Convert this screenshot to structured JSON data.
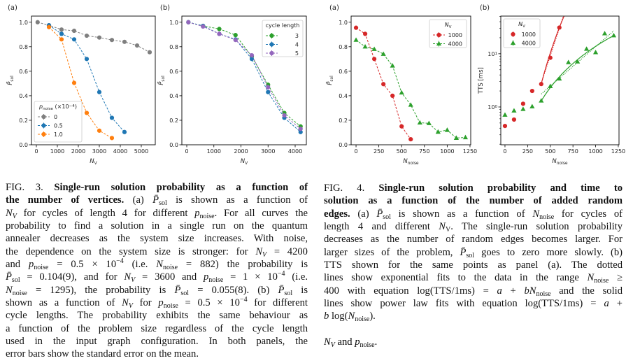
{
  "colors": {
    "gray": "#7f7f7f",
    "blue": "#1f77b4",
    "orange": "#ff7f0e",
    "green": "#2ca02c",
    "purple": "#9467bd",
    "red": "#d62728"
  },
  "chart_data": [
    {
      "panel": "(a)",
      "type": "line",
      "xlabel": [
        [
          "N",
          "i"
        ],
        [
          "V",
          "sub"
        ]
      ],
      "ylabel": [
        [
          "P̄",
          "i"
        ],
        [
          "sol",
          "sub"
        ]
      ],
      "xlim": [
        -233,
        5667
      ],
      "ylim": [
        0,
        1.05
      ],
      "xticks": [
        0,
        1000,
        2000,
        3000,
        4000,
        5000
      ],
      "yticks": [
        0.0,
        0.2,
        0.4,
        0.6,
        0.8,
        1.0
      ],
      "yscale": "linear",
      "legend": {
        "placement": "lower-left",
        "title": [
          [
            "p",
            "i"
          ],
          [
            "noise",
            "sub"
          ],
          [
            " (×10",
            ""
          ],
          [
            "−4",
            "sup"
          ],
          [
            ")",
            ""
          ]
        ]
      },
      "series": [
        {
          "name": "0",
          "color": "#7f7f7f",
          "marker": "circle",
          "x": [
            60,
            600,
            1200,
            1800,
            2400,
            3000,
            3600,
            4200,
            4800,
            5400
          ],
          "y": [
            1.0,
            0.975,
            0.94,
            0.93,
            0.89,
            0.875,
            0.855,
            0.84,
            0.81,
            0.755
          ]
        },
        {
          "name": "0.5",
          "color": "#1f77b4",
          "marker": "circle",
          "x": [
            600,
            1200,
            1800,
            2400,
            3000,
            3600,
            4200
          ],
          "y": [
            0.975,
            0.905,
            0.86,
            0.7,
            0.43,
            0.22,
            0.104
          ]
        },
        {
          "name": "1.0",
          "color": "#ff7f0e",
          "marker": "circle",
          "x": [
            600,
            1200,
            1800,
            2400,
            3000,
            3600
          ],
          "y": [
            0.96,
            0.86,
            0.505,
            0.26,
            0.115,
            0.055
          ]
        }
      ]
    },
    {
      "panel": "(b)",
      "type": "line",
      "xlabel": [
        [
          "N",
          "i"
        ],
        [
          "V",
          "sub"
        ]
      ],
      "ylabel": [
        [
          "P̄",
          "i"
        ],
        [
          "sol",
          "sub"
        ]
      ],
      "xlim": [
        -181,
        4413
      ],
      "ylim": [
        0,
        1.05
      ],
      "xticks": [
        0,
        1000,
        2000,
        3000,
        4000
      ],
      "yticks": [
        0.0,
        0.2,
        0.4,
        0.6,
        0.8,
        1.0
      ],
      "yscale": "linear",
      "legend": {
        "placement": "upper-right",
        "title": [
          [
            "cycle length",
            ""
          ]
        ]
      },
      "series": [
        {
          "name": "3",
          "color": "#2ca02c",
          "marker": "circle",
          "x": [
            60,
            600,
            1200,
            1800,
            2400,
            3000,
            3600,
            4200
          ],
          "y": [
            1.0,
            0.97,
            0.945,
            0.895,
            0.72,
            0.49,
            0.26,
            0.15
          ]
        },
        {
          "name": "4",
          "color": "#1f77b4",
          "marker": "circle",
          "x": [
            60,
            600,
            1200,
            1800,
            2400,
            3000,
            3600,
            4200
          ],
          "y": [
            1.0,
            0.97,
            0.905,
            0.86,
            0.7,
            0.43,
            0.22,
            0.104
          ]
        },
        {
          "name": "5",
          "color": "#9467bd",
          "marker": "circle",
          "x": [
            60,
            600,
            1200,
            1800,
            2400,
            3000,
            3600,
            4200
          ],
          "y": [
            1.0,
            0.965,
            0.905,
            0.855,
            0.73,
            0.47,
            0.24,
            0.13
          ]
        }
      ]
    },
    {
      "panel": "(a)",
      "type": "line",
      "xlabel": [
        [
          "N",
          "i"
        ],
        [
          "noise",
          "sub"
        ]
      ],
      "ylabel": [
        [
          "P̄",
          "i"
        ],
        [
          "sol",
          "sub"
        ]
      ],
      "xlim": [
        -54,
        1258
      ],
      "ylim": [
        0,
        1.05
      ],
      "xticks": [
        0,
        250,
        500,
        750,
        1000,
        1250
      ],
      "yticks": [
        0.0,
        0.2,
        0.4,
        0.6,
        0.8,
        1.0
      ],
      "yscale": "linear",
      "legend": {
        "placement": "upper-right",
        "title": [
          [
            "N",
            "i"
          ],
          [
            "V",
            "sub"
          ]
        ]
      },
      "series": [
        {
          "name": "1000",
          "color": "#d62728",
          "marker": "circle",
          "x": [
            0,
            100,
            200,
            300,
            400,
            500,
            600
          ],
          "y": [
            0.955,
            0.905,
            0.7,
            0.495,
            0.4,
            0.15,
            0.045
          ]
        },
        {
          "name": "4000",
          "color": "#2ca02c",
          "marker": "triangle",
          "x": [
            0,
            100,
            200,
            300,
            400,
            500,
            600,
            700,
            800,
            900,
            1000,
            1100,
            1200
          ],
          "y": [
            0.855,
            0.8,
            0.78,
            0.74,
            0.645,
            0.425,
            0.325,
            0.18,
            0.175,
            0.105,
            0.12,
            0.055,
            0.06
          ]
        }
      ]
    },
    {
      "panel": "(b)",
      "type": "scatter",
      "xlabel": [
        [
          "N",
          "i"
        ],
        [
          "noise",
          "sub"
        ]
      ],
      "ylabel": [
        [
          "TTS [ms]",
          ""
        ]
      ],
      "xlim": [
        -46,
        1258
      ],
      "ylim": [
        0.195,
        51
      ],
      "xticks": [
        0,
        250,
        500,
        750,
        1000,
        1250
      ],
      "yticks": [
        1,
        10
      ],
      "ytick_labels": [
        [
          "10",
          "0"
        ],
        [
          "10",
          "1"
        ]
      ],
      "yscale": "log",
      "legend": {
        "placement": "upper-left",
        "title": [
          [
            "N",
            "i"
          ],
          [
            "V",
            "sub"
          ]
        ]
      },
      "series": [
        {
          "name": "1000",
          "color": "#d62728",
          "marker": "circle",
          "x": [
            0,
            100,
            200,
            300,
            400,
            500,
            600
          ],
          "y": [
            0.44,
            0.58,
            1.15,
            2.0,
            2.7,
            8.4,
            31
          ]
        },
        {
          "name": "4000",
          "color": "#2ca02c",
          "marker": "triangle",
          "x": [
            0,
            100,
            200,
            300,
            400,
            500,
            600,
            700,
            800,
            900,
            1000,
            1100,
            1200
          ],
          "y": [
            0.71,
            0.85,
            0.91,
            1.02,
            1.31,
            2.45,
            3.4,
            6.9,
            7.1,
            12.3,
            10.6,
            24,
            22
          ]
        }
      ],
      "fits": [
        {
          "kind": "power law",
          "style": "solid",
          "color": "#d62728",
          "x_range": [
            400,
            660
          ],
          "a_b_from_points": [
            [
              400,
              2.7
            ],
            [
              600,
              31
            ]
          ]
        },
        {
          "kind": "exponential",
          "style": "dotted",
          "color": "#d62728",
          "x_range": [
            400,
            660
          ],
          "a_b_from_points": [
            [
              400,
              2.8
            ],
            [
              600,
              30
            ]
          ]
        },
        {
          "kind": "power law",
          "style": "solid",
          "color": "#2ca02c",
          "x_range": [
            400,
            1200
          ],
          "a_b_from_points": [
            [
              400,
              1.3
            ],
            [
              1200,
              22
            ]
          ]
        },
        {
          "kind": "exponential",
          "style": "dotted",
          "color": "#2ca02c",
          "x_range": [
            400,
            1200
          ],
          "a_b_from_points": [
            [
              400,
              1.75
            ],
            [
              1200,
              27
            ]
          ]
        }
      ]
    }
  ],
  "fig3_caption": [
    [
      [
        "FIG. 3. ",
        ""
      ],
      [
        "Single-run solution probability as a function of",
        "b"
      ]
    ],
    [
      [
        "the number of vertices.",
        "b"
      ],
      [
        " (a) ",
        ""
      ],
      [
        "P̄",
        "i"
      ],
      [
        "sol",
        "sub"
      ],
      [
        " is shown as a function of",
        ""
      ]
    ],
    [
      [
        "N",
        "i"
      ],
      [
        "V",
        "subi"
      ],
      [
        " for cycles of length 4 for different ",
        ""
      ],
      [
        "p",
        "i"
      ],
      [
        "noise",
        "sub"
      ],
      [
        ". For all curves the",
        ""
      ]
    ],
    [
      [
        "probability to find a solution in a single run on the quantum",
        ""
      ]
    ],
    [
      [
        "annealer decreases as the system size increases. With noise,",
        ""
      ]
    ],
    [
      [
        "the dependence on the system size is stronger: for ",
        ""
      ],
      [
        "N",
        "i"
      ],
      [
        "V",
        "subi"
      ],
      [
        " = 4200",
        ""
      ]
    ],
    [
      [
        "and ",
        ""
      ],
      [
        "p",
        "i"
      ],
      [
        "noise",
        "sub"
      ],
      [
        " = 0.5 × 10",
        ""
      ],
      [
        "−4",
        "sup"
      ],
      [
        " (i.e. ",
        ""
      ],
      [
        "N",
        "i"
      ],
      [
        "noise",
        "sub"
      ],
      [
        " = 882) the probability is",
        ""
      ]
    ],
    [
      [
        "P̄",
        "i"
      ],
      [
        "sol",
        "sub"
      ],
      [
        " = 0.104(9), and for ",
        ""
      ],
      [
        "N",
        "i"
      ],
      [
        "V",
        "subi"
      ],
      [
        " = 3600 and ",
        ""
      ],
      [
        "p",
        "i"
      ],
      [
        "noise",
        "sub"
      ],
      [
        " = 1 × 10",
        ""
      ],
      [
        "−4",
        "sup"
      ],
      [
        " (i.e.",
        ""
      ]
    ],
    [
      [
        "N",
        "i"
      ],
      [
        "noise",
        "sub"
      ],
      [
        " = 1295), the probability is ",
        ""
      ],
      [
        "P̄",
        "i"
      ],
      [
        "sol",
        "sub"
      ],
      [
        " = 0.055(8). (b) ",
        ""
      ],
      [
        "P̄",
        "i"
      ],
      [
        "sol",
        "sub"
      ],
      [
        " is",
        ""
      ]
    ],
    [
      [
        "shown as a function of ",
        ""
      ],
      [
        "N",
        "i"
      ],
      [
        "V",
        "subi"
      ],
      [
        " for ",
        ""
      ],
      [
        "p",
        "i"
      ],
      [
        "noise",
        "sub"
      ],
      [
        " = 0.5 × 10",
        ""
      ],
      [
        "−4",
        "sup"
      ],
      [
        " for different",
        ""
      ]
    ],
    [
      [
        "cycle lengths. The probability exhibits the same behaviour as",
        ""
      ]
    ],
    [
      [
        "a function of the problem size regardless of the cycle length",
        ""
      ]
    ],
    [
      [
        "used in the input graph configuration. In both panels, the",
        ""
      ]
    ],
    [
      [
        "error bars show the standard error on the mean.",
        ""
      ]
    ]
  ],
  "fig4_caption": [
    [
      [
        "FIG. 4. ",
        ""
      ],
      [
        "Single-run solution probability and time to",
        "b"
      ]
    ],
    [
      [
        "solution as a function of the number of added random",
        "b"
      ]
    ],
    [
      [
        "edges.",
        "b"
      ],
      [
        " (a) ",
        ""
      ],
      [
        "P̄",
        "i"
      ],
      [
        "sol",
        "sub"
      ],
      [
        " is shown as a function of ",
        ""
      ],
      [
        "N",
        "i"
      ],
      [
        "noise",
        "sub"
      ],
      [
        " for cycles of",
        ""
      ]
    ],
    [
      [
        "length 4 and different ",
        ""
      ],
      [
        "N",
        "i"
      ],
      [
        "V",
        "sub"
      ],
      [
        ". The single-run solution probability",
        ""
      ]
    ],
    [
      [
        "decreases as the number of random edges becomes larger. For",
        ""
      ]
    ],
    [
      [
        "larger sizes of the problem, ",
        ""
      ],
      [
        "P̄",
        "i"
      ],
      [
        "sol",
        "sub"
      ],
      [
        " goes to zero more slowly. (b)",
        ""
      ]
    ],
    [
      [
        "TTS shown for the same points as panel (a). The dotted",
        ""
      ]
    ],
    [
      [
        "lines show exponential fits to the data in the range ",
        ""
      ],
      [
        "N",
        "i"
      ],
      [
        "noise",
        "sub"
      ],
      [
        " ≥",
        ""
      ]
    ],
    [
      [
        "400 with equation log(TTS/1ms) = ",
        ""
      ],
      [
        "a",
        "i"
      ],
      [
        " + ",
        ""
      ],
      [
        "bN",
        "i"
      ],
      [
        "noise",
        "sub"
      ],
      [
        " and the solid",
        ""
      ]
    ],
    [
      [
        "lines show power law fits with equation log(TTS/1ms) = ",
        ""
      ],
      [
        "a",
        "i"
      ],
      [
        " +",
        ""
      ]
    ],
    [
      [
        "b",
        "i"
      ],
      [
        " log(",
        ""
      ],
      [
        "N",
        "i"
      ],
      [
        "noise",
        "sub"
      ],
      [
        ").",
        ""
      ]
    ]
  ],
  "fragment": [
    [
      "N",
      "i"
    ],
    [
      "V",
      "subi"
    ],
    [
      " and ",
      ""
    ],
    [
      "p",
      "i"
    ],
    [
      "noise",
      "sub"
    ],
    [
      ".",
      ""
    ]
  ]
}
